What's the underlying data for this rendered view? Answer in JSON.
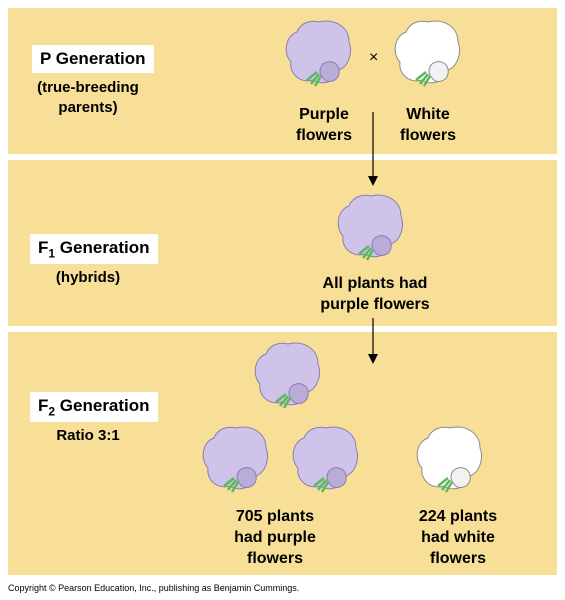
{
  "p_generation": {
    "title": "P Generation",
    "subtitle_line1": "(true-breeding",
    "subtitle_line2": "parents)",
    "cross_symbol": "×",
    "parent_left_line1": "Purple",
    "parent_left_line2": "flowers",
    "parent_right_line1": "White",
    "parent_right_line2": "flowers"
  },
  "f1_generation": {
    "title_letter": "F",
    "title_sub": "1",
    "title_rest": " Generation",
    "subtitle": "(hybrids)",
    "result_line1": "All plants had",
    "result_line2": "purple flowers"
  },
  "f2_generation": {
    "title_letter": "F",
    "title_sub": "2",
    "title_rest": " Generation",
    "ratio": "Ratio 3:1",
    "purple_line1": "705 plants",
    "purple_line2": "had purple",
    "purple_line3": "flowers",
    "white_line1": "224 plants",
    "white_line2": "had white",
    "white_line3": "flowers"
  },
  "colors": {
    "panel_bg": "#f7df98",
    "purple_petal": "#cfc3ea",
    "white_petal": "#ffffff",
    "stem": "#5db85a"
  },
  "copyright": "Copyright © Pearson Education, Inc., publishing as Benjamin Cummings."
}
